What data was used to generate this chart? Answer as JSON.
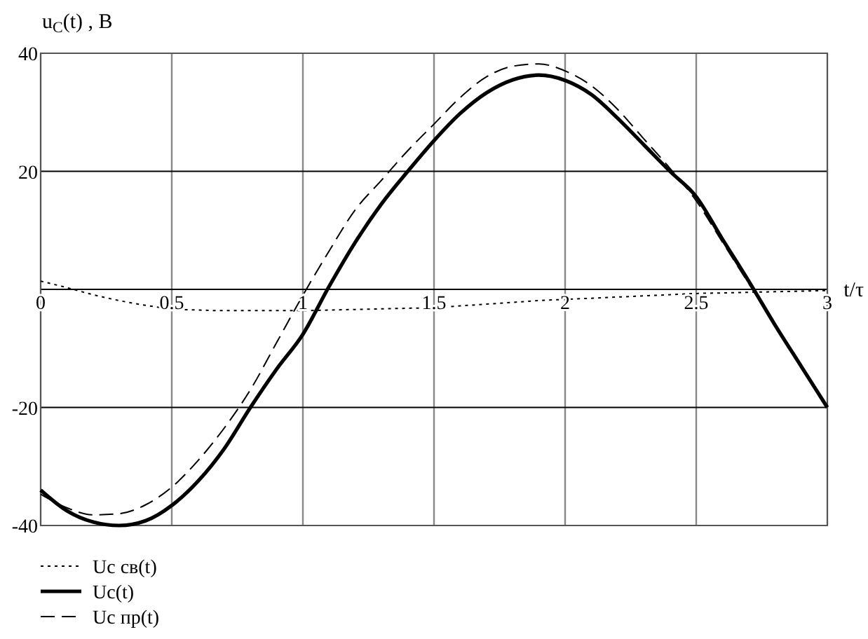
{
  "chart_data": {
    "type": "line",
    "xlabel": "t/τ",
    "ylabel": "u$_{C}$(t)  , B",
    "x": [
      0,
      0.1,
      0.2,
      0.3,
      0.4,
      0.5,
      0.6,
      0.7,
      0.8,
      0.9,
      1,
      1.1,
      1.2,
      1.3,
      1.4,
      1.5,
      1.6,
      1.7,
      1.8,
      1.9,
      2,
      2.1,
      2.2,
      2.3,
      2.4,
      2.5,
      2.6,
      2.7,
      2.8,
      2.9,
      3
    ],
    "series": [
      {
        "name": "Uc св(t)",
        "color": "#000000",
        "line_style": "dotted",
        "values": [
          1.4,
          0.3,
          -0.9,
          -1.9,
          -2.7,
          -3.3,
          -3.5,
          -3.6,
          -3.6,
          -3.6,
          -3.6,
          -3.5,
          -3.4,
          -3.3,
          -3.2,
          -3.1,
          -2.8,
          -2.5,
          -2.2,
          -1.9,
          -1.7,
          -1.5,
          -1.3,
          -1.1,
          -0.9,
          -0.7,
          -0.6,
          -0.5,
          -0.4,
          -0.3,
          -0.2
        ]
      },
      {
        "name": "Uc(t)",
        "color": "#000000",
        "line_style": "solid",
        "values": [
          -34,
          -37.5,
          -39.4,
          -40,
          -39.2,
          -36.6,
          -32.5,
          -27,
          -20,
          -13.5,
          -7.6,
          0.5,
          8,
          14.5,
          20,
          25.2,
          29.8,
          33.3,
          35.5,
          36.3,
          35.4,
          33,
          29,
          24.5,
          20,
          15.7,
          8.5,
          1.4,
          -6,
          -13,
          -20
        ]
      },
      {
        "name": "Uc пр(t)",
        "color": "#000000",
        "line_style": "dashed",
        "values": [
          -34.7,
          -37,
          -38.2,
          -38,
          -36.5,
          -33.5,
          -29,
          -23.5,
          -17,
          -9,
          -1,
          6.5,
          13.5,
          18.5,
          23.5,
          28,
          32.5,
          36,
          37.8,
          38.2,
          37,
          34.5,
          30.5,
          25.5,
          20.5,
          15,
          8,
          1,
          -6,
          -13,
          -20
        ]
      }
    ],
    "xlim": [
      0,
      3
    ],
    "xticks": [
      0,
      0.5,
      1,
      1.5,
      2,
      2.5,
      3
    ],
    "ylim": [
      -40,
      40
    ],
    "yticks": [
      -40,
      -20,
      {
        "value": 0,
        "label": null
      },
      20,
      40
    ],
    "grid": true,
    "legend": "bottom left"
  }
}
